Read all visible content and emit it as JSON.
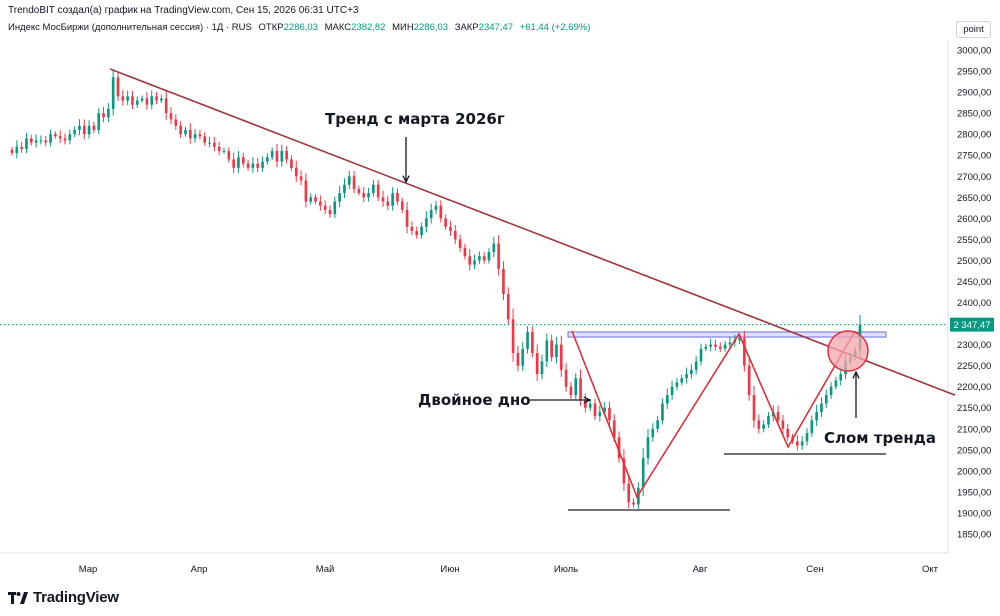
{
  "credit": "TrendoBIT создал(а) график на TradingView.com, Сен 15, 2026 06:31 UTC+3",
  "symbol": {
    "name": "Индекс МосБиржи (дополнительная сессия) · 1Д · RUS",
    "open_label": "ОТКР",
    "open": "2286,03",
    "high_label": "МАКС",
    "high": "2382,82",
    "low_label": "МИН",
    "low": "2286,03",
    "close_label": "ЗАКР",
    "close": "2347,47",
    "change": "+61,44 (+2,69%)"
  },
  "point_button": "point",
  "price_tag": "2 347,47",
  "brand": "TradingView",
  "colors": {
    "up": "#089981",
    "down": "#f23645",
    "trendline": "#a0353c",
    "pattern": "#e0303a",
    "level": "#1e1e1e",
    "zone_fill": "#c8c9f4",
    "zone_stroke": "#6b6ee0"
  },
  "chart_data": {
    "type": "candlestick",
    "y_axis": {
      "min": 1800,
      "max": 3000,
      "ticks": [
        "3000,00",
        "2950,00",
        "2900,00",
        "2850,00",
        "2800,00",
        "2750,00",
        "2700,00",
        "2650,00",
        "2600,00",
        "2550,00",
        "2500,00",
        "2450,00",
        "2400,00",
        "2350,00",
        "2300,00",
        "2250,00",
        "2200,00",
        "2150,00",
        "2100,00",
        "2050,00",
        "2000,00",
        "1950,00",
        "1900,00",
        "1850,00"
      ]
    },
    "x_axis": {
      "labels": [
        "Мар",
        "Апр",
        "Май",
        "Июн",
        "Июль",
        "Авг",
        "Сен",
        "Окт"
      ]
    },
    "last_price": 2347.47,
    "annotations": [
      {
        "text": "Тренд с марта 2026г"
      },
      {
        "text": "Двойное дно"
      },
      {
        "text": "Слом тренда"
      }
    ],
    "closes": [
      2755,
      2770,
      2765,
      2790,
      2780,
      2785,
      2785,
      2780,
      2800,
      2795,
      2790,
      2785,
      2800,
      2810,
      2820,
      2800,
      2820,
      2810,
      2850,
      2840,
      2860,
      2935,
      2890,
      2880,
      2890,
      2870,
      2880,
      2885,
      2870,
      2890,
      2880,
      2885,
      2850,
      2835,
      2820,
      2800,
      2810,
      2790,
      2800,
      2795,
      2780,
      2780,
      2770,
      2760,
      2760,
      2740,
      2720,
      2745,
      2730,
      2720,
      2730,
      2720,
      2735,
      2745,
      2760,
      2735,
      2760,
      2740,
      2720,
      2700,
      2690,
      2640,
      2650,
      2640,
      2630,
      2620,
      2610,
      2640,
      2660,
      2680,
      2700,
      2670,
      2660,
      2650,
      2660,
      2680,
      2650,
      2640,
      2630,
      2660,
      2640,
      2620,
      2580,
      2570,
      2560,
      2580,
      2600,
      2620,
      2630,
      2600,
      2580,
      2570,
      2550,
      2530,
      2510,
      2490,
      2500,
      2510,
      2500,
      2520,
      2540,
      2480,
      2420,
      2360,
      2280,
      2250,
      2290,
      2330,
      2280,
      2230,
      2260,
      2310,
      2270,
      2300,
      2240,
      2200,
      2180,
      2220,
      2170,
      2150,
      2160,
      2130,
      2140,
      2150,
      2120,
      2080,
      2030,
      1970,
      1925,
      1920,
      1960,
      2030,
      2080,
      2100,
      2120,
      2160,
      2180,
      2200,
      2210,
      2220,
      2230,
      2240,
      2260,
      2290,
      2295,
      2300,
      2295,
      2290,
      2300,
      2305,
      2310,
      2315,
      2250,
      2180,
      2120,
      2100,
      2110,
      2130,
      2140,
      2120,
      2100,
      2080,
      2070,
      2060,
      2070,
      2090,
      2120,
      2140,
      2160,
      2180,
      2200,
      2215,
      2230,
      2260,
      2270,
      2286,
      2347.47
    ],
    "shapes": {
      "trendline": {
        "from": [
          "Мар",
          2955
        ],
        "to": [
          "Окт",
          2180
        ]
      },
      "resistance_zone": {
        "from": 2318,
        "to": 2330
      },
      "double_bottom_lows": [
        1905,
        2045
      ],
      "pattern": [
        2330,
        1935,
        2325,
        2065,
        2330
      ]
    }
  }
}
